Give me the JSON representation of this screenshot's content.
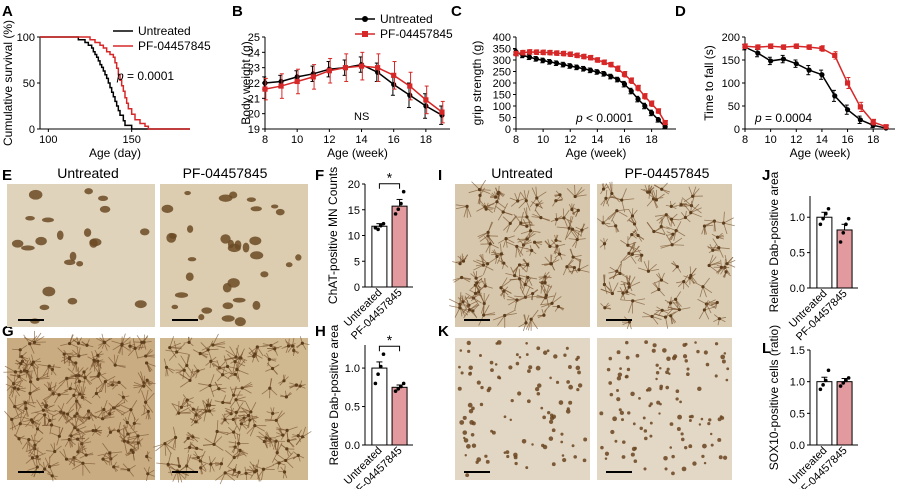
{
  "panel_letters": {
    "A": "A",
    "B": "B",
    "C": "C",
    "D": "D",
    "E": "E",
    "F": "F",
    "G": "G",
    "H": "H",
    "I": "I",
    "J": "J",
    "K": "K",
    "L": "L"
  },
  "micrograph_headers": {
    "untreated": "Untreated",
    "treated": "PF-04457845"
  },
  "colors": {
    "untreated": "#000000",
    "treated": "#d62828",
    "bar_treated_fill": "#e39a9e",
    "tissue_light": "#d9c8ac",
    "tissue_dense": "#b89468"
  },
  "chart_data": [
    {
      "panel": "A",
      "type": "line",
      "title": "",
      "xlabel": "Age (day)",
      "ylabel": "Cumulative survival (%)",
      "xlim": [
        95,
        185
      ],
      "ylim": [
        0,
        100
      ],
      "xticks": [
        100,
        150
      ],
      "yticks": [
        0,
        50,
        100
      ],
      "annotation_prefix": "p",
      "annotation_value": " = 0.0001",
      "series": [
        {
          "name": "Untreated",
          "color": "#000000",
          "x": [
            95,
            110,
            118,
            122,
            124,
            126,
            127,
            128,
            129,
            130,
            131,
            132,
            133,
            134,
            135,
            136,
            137,
            138,
            139,
            140,
            141,
            142,
            143,
            145,
            146,
            150,
            185
          ],
          "y": [
            100,
            100,
            97,
            94,
            91,
            88,
            84,
            81,
            78,
            74,
            70,
            67,
            63,
            59,
            55,
            50,
            45,
            40,
            35,
            30,
            25,
            20,
            15,
            9,
            4,
            0,
            0
          ]
        },
        {
          "name": "PF-04457845",
          "color": "#d62828",
          "x": [
            95,
            118,
            125,
            128,
            131,
            133,
            135,
            137,
            139,
            140,
            141,
            142,
            143,
            144,
            145,
            146,
            147,
            148,
            150,
            152,
            155,
            158,
            160,
            185
          ],
          "y": [
            100,
            100,
            97,
            94,
            91,
            88,
            84,
            81,
            78,
            72,
            66,
            59,
            53,
            47,
            41,
            34,
            28,
            22,
            16,
            10,
            6,
            3,
            0,
            0
          ]
        }
      ]
    },
    {
      "panel": "B",
      "type": "line",
      "title": "",
      "xlabel": "Age (week)",
      "ylabel": "Body weight (g)",
      "xlim": [
        8,
        19.5
      ],
      "ylim": [
        19,
        25
      ],
      "xticks": [
        8,
        10,
        12,
        14,
        16,
        18
      ],
      "yticks": [
        19,
        20,
        21,
        22,
        23,
        24,
        25
      ],
      "annotation": "NS",
      "series": [
        {
          "name": "Untreated",
          "color": "#000000",
          "x": [
            8,
            9,
            10,
            11,
            12,
            13,
            14,
            15,
            16,
            17,
            18,
            19
          ],
          "y": [
            22.0,
            22.1,
            22.4,
            22.6,
            22.9,
            23.0,
            23.2,
            22.7,
            21.9,
            21.2,
            20.5,
            19.9
          ],
          "err": [
            0.4,
            0.4,
            0.4,
            0.5,
            0.5,
            0.5,
            0.5,
            0.6,
            0.7,
            0.8,
            0.8,
            0.6
          ]
        },
        {
          "name": "PF-04457845",
          "color": "#d62828",
          "x": [
            8,
            9,
            10,
            11,
            12,
            13,
            14,
            15,
            16,
            17,
            18,
            19
          ],
          "y": [
            21.6,
            21.8,
            22.1,
            22.4,
            22.8,
            23.0,
            23.1,
            23.0,
            22.5,
            21.8,
            20.9,
            20.1
          ],
          "err": [
            0.7,
            0.8,
            0.8,
            0.8,
            0.8,
            0.9,
            0.9,
            0.9,
            0.9,
            0.9,
            0.9,
            0.7
          ]
        }
      ]
    },
    {
      "panel": "C",
      "type": "line",
      "title": "",
      "xlabel": "Age (week)",
      "ylabel": "grip strength (g)",
      "xlim": [
        8,
        19.8
      ],
      "ylim": [
        0,
        400
      ],
      "xticks": [
        8,
        10,
        12,
        14,
        16,
        18
      ],
      "yticks": [
        0,
        50,
        100,
        150,
        200,
        250,
        300,
        350,
        400
      ],
      "annotation_prefix": "p",
      "annotation_value": " < 0.0001",
      "series": [
        {
          "name": "Untreated",
          "color": "#000000",
          "x": [
            8,
            8.5,
            9,
            9.5,
            10,
            10.5,
            11,
            11.5,
            12,
            12.5,
            13,
            13.5,
            14,
            14.5,
            15,
            15.5,
            16,
            16.5,
            17,
            17.5,
            18,
            18.5,
            19
          ],
          "y": [
            335,
            320,
            312,
            305,
            298,
            292,
            286,
            280,
            274,
            268,
            262,
            255,
            248,
            240,
            228,
            215,
            195,
            165,
            130,
            100,
            70,
            40,
            10
          ],
          "err": [
            12,
            10,
            10,
            10,
            10,
            10,
            10,
            10,
            10,
            10,
            10,
            10,
            10,
            10,
            10,
            10,
            12,
            12,
            12,
            12,
            12,
            10,
            8
          ]
        },
        {
          "name": "PF-04457845",
          "color": "#d62828",
          "x": [
            8,
            8.5,
            9,
            9.5,
            10,
            10.5,
            11,
            11.5,
            12,
            12.5,
            13,
            13.5,
            14,
            14.5,
            15,
            15.5,
            16,
            16.5,
            17,
            17.5,
            18,
            18.5,
            19
          ],
          "y": [
            328,
            332,
            335,
            334,
            333,
            332,
            330,
            328,
            325,
            320,
            315,
            310,
            300,
            290,
            280,
            262,
            238,
            210,
            178,
            142,
            110,
            78,
            28
          ],
          "err": [
            10,
            10,
            10,
            10,
            10,
            10,
            10,
            10,
            10,
            10,
            10,
            10,
            10,
            10,
            10,
            12,
            12,
            12,
            12,
            12,
            12,
            10,
            8
          ]
        }
      ]
    },
    {
      "panel": "D",
      "type": "line",
      "title": "",
      "xlabel": "Age (week)",
      "ylabel": "Time to fall (s)",
      "xlim": [
        8,
        19.7
      ],
      "ylim": [
        0,
        200
      ],
      "xticks": [
        8,
        10,
        12,
        14,
        16,
        18
      ],
      "yticks": [
        0,
        50,
        100,
        150,
        200
      ],
      "annotation_prefix": "p",
      "annotation_value": " = 0.0004",
      "series": [
        {
          "name": "Untreated",
          "color": "#000000",
          "x": [
            8,
            9,
            10,
            11,
            12,
            13,
            14,
            15,
            16,
            17,
            18,
            19
          ],
          "y": [
            178,
            165,
            148,
            152,
            142,
            128,
            118,
            72,
            42,
            20,
            8,
            2
          ],
          "err": [
            6,
            8,
            8,
            8,
            8,
            10,
            10,
            12,
            10,
            8,
            5,
            2
          ]
        },
        {
          "name": "PF-04457845",
          "color": "#d62828",
          "x": [
            8,
            9,
            10,
            11,
            12,
            13,
            14,
            15,
            16,
            17,
            18,
            19
          ],
          "y": [
            180,
            178,
            180,
            178,
            180,
            178,
            175,
            160,
            100,
            48,
            15,
            5
          ],
          "err": [
            5,
            5,
            5,
            5,
            5,
            5,
            6,
            8,
            12,
            10,
            6,
            3
          ]
        }
      ]
    },
    {
      "panel": "F",
      "type": "bar",
      "ylabel": "ChAT-positive MN Counts",
      "categories": [
        "Untreated",
        "PF-04457845"
      ],
      "values": [
        11.8,
        15.7
      ],
      "err": [
        0.5,
        1.3
      ],
      "ylim": [
        0,
        20
      ],
      "yticks": [
        0,
        5,
        10,
        15,
        20
      ],
      "significance": "*",
      "points": [
        [
          11.5,
          11.2,
          11.9,
          12.3
        ],
        [
          14.2,
          15.1,
          16.2,
          18.5
        ]
      ]
    },
    {
      "panel": "H",
      "type": "bar",
      "ylabel": "Relative Dab-positive area",
      "categories": [
        "Untreated",
        "PF-04457845"
      ],
      "values": [
        1.0,
        0.75
      ],
      "err": [
        0.08,
        0.03
      ],
      "ylim": [
        0,
        1.3
      ],
      "yticks": [
        0.0,
        0.5,
        1.0
      ],
      "significance": "*",
      "points": [
        [
          0.8,
          0.92,
          1.02,
          1.18
        ],
        [
          0.7,
          0.73,
          0.76,
          0.8
        ]
      ]
    },
    {
      "panel": "J",
      "type": "bar",
      "ylabel": "Relative Dab-positive area",
      "categories": [
        "Untreated",
        "PF-04457845"
      ],
      "values": [
        1.0,
        0.82
      ],
      "err": [
        0.07,
        0.08
      ],
      "ylim": [
        0,
        1.3
      ],
      "yticks": [
        0.0,
        0.5,
        1.0
      ],
      "points": [
        [
          0.9,
          0.98,
          1.05,
          1.12
        ],
        [
          0.65,
          0.78,
          0.9,
          0.98
        ]
      ]
    },
    {
      "panel": "L",
      "type": "bar",
      "ylabel": "SOX10-positive cells (ratio)",
      "categories": [
        "Untreated",
        "PF-04457845"
      ],
      "values": [
        1.0,
        1.0
      ],
      "err": [
        0.07,
        0.05
      ],
      "ylim": [
        0,
        1.5
      ],
      "yticks": [
        0.0,
        0.5,
        1.0,
        1.5
      ],
      "points": [
        [
          0.88,
          0.95,
          1.02,
          1.18
        ],
        [
          0.93,
          0.98,
          1.02,
          1.06
        ]
      ]
    }
  ]
}
